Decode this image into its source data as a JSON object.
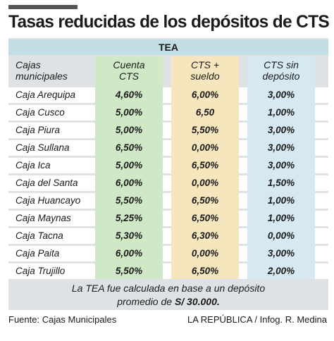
{
  "title": "Tasas reducidas de los depósitos de CTS",
  "tea_label": "TEA",
  "headers": {
    "col0": [
      "Cajas",
      "municipales"
    ],
    "col1": [
      "Cuenta",
      "CTS"
    ],
    "col2": [
      "CTS +",
      "sueldo"
    ],
    "col3": [
      "CTS sin",
      "depósito"
    ]
  },
  "rows": [
    {
      "name": "Caja Arequipa",
      "cuenta": "4,60%",
      "sueldo": "6,00%",
      "sin": "3,00%"
    },
    {
      "name": "Caja Cusco",
      "cuenta": "5,00%",
      "sueldo": "6,50",
      "sin": "1,00%"
    },
    {
      "name": "Caja Piura",
      "cuenta": "5,00%",
      "sueldo": "5,50%",
      "sin": "3,00%"
    },
    {
      "name": "Caja Sullana",
      "cuenta": "6,50%",
      "sueldo": "0,00%",
      "sin": "3,00%"
    },
    {
      "name": "Caja Ica",
      "cuenta": "5,00%",
      "sueldo": "6,50%",
      "sin": "3,00%"
    },
    {
      "name": "Caja del Santa",
      "cuenta": "6,00%",
      "sueldo": "0,00%",
      "sin": "1,50%"
    },
    {
      "name": "Caja Huancayo",
      "cuenta": "5,50%",
      "sueldo": "6,50%",
      "sin": "1,00%"
    },
    {
      "name": "Caja Maynas",
      "cuenta": "5,25%",
      "sueldo": "6,50%",
      "sin": "1,00%"
    },
    {
      "name": "Caja Tacna",
      "cuenta": "5,30%",
      "sueldo": "6,30%",
      "sin": "0,00%"
    },
    {
      "name": "Caja Paita",
      "cuenta": "6,00%",
      "sueldo": "0,00%",
      "sin": "3,00%"
    },
    {
      "name": "Caja Trujillo",
      "cuenta": "5,50%",
      "sueldo": "6,50%",
      "sin": "2,00%"
    }
  ],
  "note": {
    "line1": "La TEA fue calculada en base a un depósito",
    "line2_prefix": "promedio de",
    "line2_amount": "S/ 30.000."
  },
  "source": "Fuente: Cajas Municipales",
  "credit": "LA REPÚBLICA / Infog. R. Medina",
  "colors": {
    "panel": "#dfe2e4",
    "row_white": "#ffffff",
    "tea_bar": "#c3dde5",
    "green": "#cfe8c6",
    "yellow": "#f6e6bd",
    "blue": "#d6e9f3"
  }
}
